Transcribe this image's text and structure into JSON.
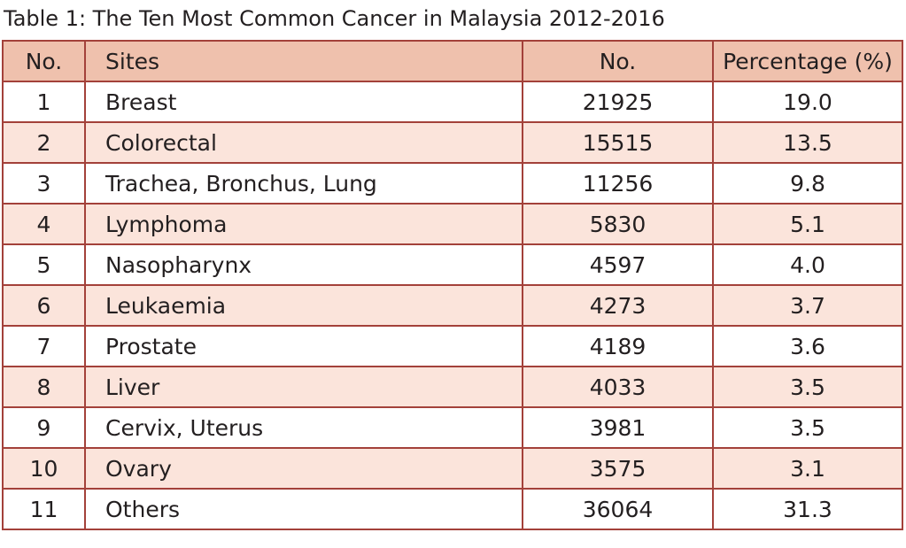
{
  "chart_data": {
    "type": "table",
    "title": "Table 1: The Ten Most Common Cancer in Malaysia 2012-2016",
    "columns": [
      "No.",
      "Sites",
      "No.",
      "Percentage (%)"
    ],
    "rows": [
      {
        "rank": "1",
        "site": "Breast",
        "count": "21925",
        "percentage": "19.0"
      },
      {
        "rank": "2",
        "site": "Colorectal",
        "count": "15515",
        "percentage": "13.5"
      },
      {
        "rank": "3",
        "site": "Trachea, Bronchus, Lung",
        "count": "11256",
        "percentage": "9.8"
      },
      {
        "rank": "4",
        "site": "Lymphoma",
        "count": "5830",
        "percentage": "5.1"
      },
      {
        "rank": "5",
        "site": "Nasopharynx",
        "count": "4597",
        "percentage": "4.0"
      },
      {
        "rank": "6",
        "site": "Leukaemia",
        "count": "4273",
        "percentage": "3.7"
      },
      {
        "rank": "7",
        "site": "Prostate",
        "count": "4189",
        "percentage": "3.6"
      },
      {
        "rank": "8",
        "site": "Liver",
        "count": "4033",
        "percentage": "3.5"
      },
      {
        "rank": "9",
        "site": "Cervix, Uterus",
        "count": "3981",
        "percentage": "3.5"
      },
      {
        "rank": "10",
        "site": "Ovary",
        "count": "3575",
        "percentage": "3.1"
      },
      {
        "rank": "11",
        "site": "Others",
        "count": "36064",
        "percentage": "31.3"
      }
    ]
  },
  "colors": {
    "header_fill": "#efc1ad",
    "alt_row_fill": "#fbe4db",
    "border": "#a3413a",
    "text": "#231f20"
  }
}
